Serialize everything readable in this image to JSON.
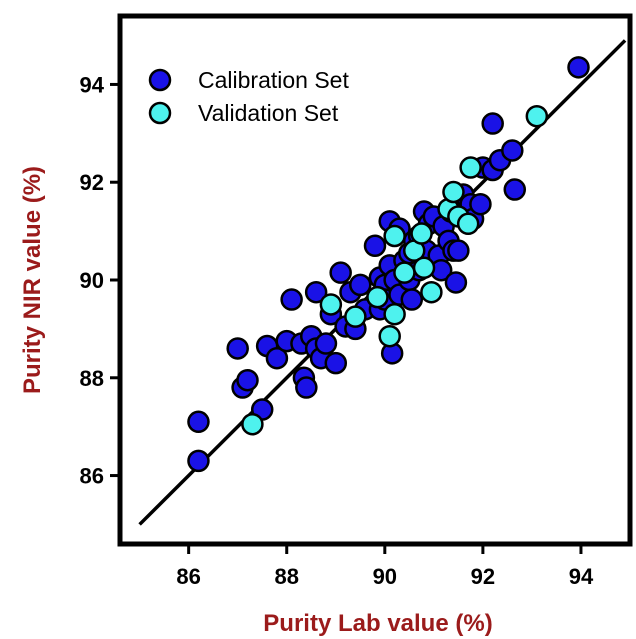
{
  "chart_data": {
    "type": "scatter",
    "title": "",
    "xlabel": "Purity Lab value (%)",
    "ylabel": "Purity NIR value (%)",
    "xlim": [
      84.6,
      95.0
    ],
    "ylim": [
      84.6,
      95.4
    ],
    "xticks": [
      86,
      88,
      90,
      92,
      94
    ],
    "yticks": [
      86,
      88,
      90,
      92,
      94
    ],
    "grid": false,
    "legend_position": "top-left",
    "fit_line": {
      "x": [
        85.0,
        94.9
      ],
      "y": [
        85.0,
        94.9
      ],
      "color": "#000000"
    },
    "series": [
      {
        "name": "Calibration Set",
        "color": "#1a12e6",
        "points": [
          [
            86.2,
            87.1
          ],
          [
            86.2,
            86.3
          ],
          [
            87.0,
            88.6
          ],
          [
            87.1,
            87.8
          ],
          [
            87.2,
            87.95
          ],
          [
            87.5,
            87.35
          ],
          [
            87.6,
            88.65
          ],
          [
            87.8,
            88.4
          ],
          [
            88.0,
            88.75
          ],
          [
            88.1,
            89.6
          ],
          [
            88.3,
            88.7
          ],
          [
            88.35,
            88.0
          ],
          [
            88.4,
            87.8
          ],
          [
            88.5,
            88.85
          ],
          [
            88.6,
            88.6
          ],
          [
            88.6,
            89.75
          ],
          [
            88.7,
            88.4
          ],
          [
            88.8,
            88.7
          ],
          [
            88.9,
            89.3
          ],
          [
            89.0,
            88.3
          ],
          [
            89.1,
            90.15
          ],
          [
            89.2,
            89.05
          ],
          [
            89.3,
            89.75
          ],
          [
            89.4,
            89.0
          ],
          [
            89.5,
            89.9
          ],
          [
            89.6,
            89.4
          ],
          [
            89.8,
            90.7
          ],
          [
            89.9,
            89.4
          ],
          [
            89.9,
            90.05
          ],
          [
            90.0,
            89.9
          ],
          [
            90.0,
            89.6
          ],
          [
            90.1,
            90.3
          ],
          [
            90.1,
            91.2
          ],
          [
            90.15,
            88.5
          ],
          [
            90.2,
            90.0
          ],
          [
            90.3,
            89.7
          ],
          [
            90.3,
            91.05
          ],
          [
            90.4,
            90.4
          ],
          [
            90.5,
            90.0
          ],
          [
            90.5,
            90.55
          ],
          [
            90.55,
            89.6
          ],
          [
            90.6,
            90.8
          ],
          [
            90.7,
            90.2
          ],
          [
            90.7,
            90.9
          ],
          [
            90.8,
            91.4
          ],
          [
            90.85,
            90.6
          ],
          [
            90.9,
            91.15
          ],
          [
            91.0,
            91.3
          ],
          [
            91.1,
            90.5
          ],
          [
            91.15,
            90.2
          ],
          [
            91.2,
            91.1
          ],
          [
            91.3,
            90.8
          ],
          [
            91.35,
            91.4
          ],
          [
            91.4,
            90.6
          ],
          [
            91.45,
            89.95
          ],
          [
            91.5,
            90.6
          ],
          [
            91.6,
            91.75
          ],
          [
            91.75,
            91.55
          ],
          [
            91.8,
            91.25
          ],
          [
            91.95,
            91.55
          ],
          [
            92.0,
            92.3
          ],
          [
            92.2,
            93.2
          ],
          [
            92.2,
            92.25
          ],
          [
            92.35,
            92.45
          ],
          [
            92.6,
            92.65
          ],
          [
            92.65,
            91.85
          ],
          [
            93.95,
            94.35
          ]
        ]
      },
      {
        "name": "Validation Set",
        "color": "#4ef2ee",
        "points": [
          [
            87.3,
            87.05
          ],
          [
            88.9,
            89.5
          ],
          [
            89.4,
            89.25
          ],
          [
            89.85,
            89.65
          ],
          [
            90.1,
            88.85
          ],
          [
            90.2,
            89.3
          ],
          [
            90.2,
            90.9
          ],
          [
            90.4,
            90.15
          ],
          [
            90.6,
            90.6
          ],
          [
            90.75,
            90.95
          ],
          [
            90.8,
            90.25
          ],
          [
            90.95,
            89.75
          ],
          [
            91.3,
            91.45
          ],
          [
            91.4,
            91.8
          ],
          [
            91.5,
            91.3
          ],
          [
            91.7,
            91.15
          ],
          [
            91.75,
            92.3
          ],
          [
            93.1,
            93.35
          ]
        ]
      }
    ]
  }
}
